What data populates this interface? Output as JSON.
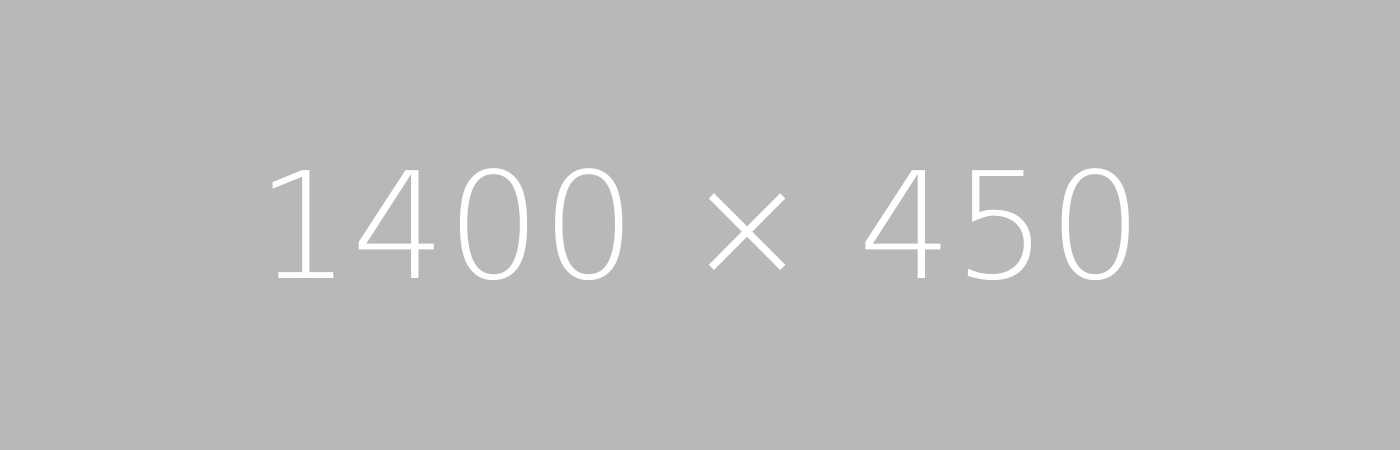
{
  "placeholder": {
    "label": "1400 × 450",
    "background_color": "#b8b8b8",
    "text_color": "#ffffff"
  }
}
